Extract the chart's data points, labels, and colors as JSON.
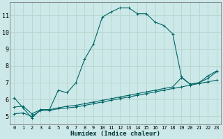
{
  "xlabel": "Humidex (Indice chaleur)",
  "bg_color": "#cce8e8",
  "grid_color": "#b8d8d0",
  "line_color": "#006666",
  "xlim": [
    -0.5,
    23.5
  ],
  "ylim": [
    4.5,
    11.8
  ],
  "xticks": [
    0,
    1,
    2,
    3,
    4,
    5,
    6,
    7,
    8,
    9,
    10,
    11,
    12,
    13,
    14,
    15,
    16,
    17,
    18,
    19,
    20,
    21,
    22,
    23
  ],
  "yticks": [
    5,
    6,
    7,
    8,
    9,
    10,
    11
  ],
  "curve1_x": [
    0,
    1,
    2,
    3,
    4,
    5,
    6,
    7,
    8,
    9,
    10,
    11,
    12,
    13,
    14,
    15,
    16,
    17,
    18,
    19,
    20,
    21,
    22,
    23
  ],
  "curve1_y": [
    6.1,
    5.5,
    4.9,
    5.4,
    5.4,
    6.55,
    6.4,
    7.0,
    8.4,
    9.3,
    10.9,
    11.2,
    11.45,
    11.45,
    11.1,
    11.1,
    10.6,
    10.4,
    9.9,
    7.35,
    6.9,
    7.0,
    7.4,
    7.7
  ],
  "curve2_x": [
    0,
    1,
    2,
    3,
    4,
    5,
    6,
    7,
    8,
    9,
    10,
    11,
    12,
    13,
    14,
    15,
    16,
    17,
    18,
    19,
    20,
    21,
    22,
    23
  ],
  "curve2_y": [
    5.55,
    5.6,
    5.15,
    5.4,
    5.4,
    5.5,
    5.6,
    5.65,
    5.75,
    5.85,
    5.95,
    6.05,
    6.15,
    6.25,
    6.35,
    6.45,
    6.55,
    6.65,
    6.75,
    7.3,
    6.9,
    7.0,
    7.25,
    7.65
  ],
  "curve3_x": [
    0,
    1,
    2,
    3,
    4,
    5,
    6,
    7,
    8,
    9,
    10,
    11,
    12,
    13,
    14,
    15,
    16,
    17,
    18,
    19,
    20,
    21,
    22,
    23
  ],
  "curve3_y": [
    5.15,
    5.2,
    5.0,
    5.35,
    5.35,
    5.45,
    5.5,
    5.55,
    5.65,
    5.75,
    5.85,
    5.95,
    6.05,
    6.15,
    6.25,
    6.35,
    6.45,
    6.55,
    6.65,
    6.75,
    6.85,
    6.95,
    7.05,
    7.15
  ]
}
